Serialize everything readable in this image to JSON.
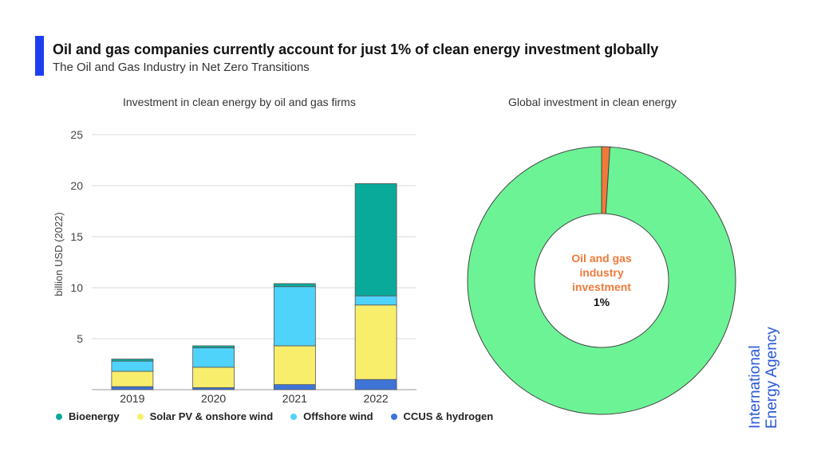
{
  "header": {
    "title": "Oil and gas companies currently account for just 1% of clean energy investment globally",
    "subtitle": "The Oil and Gas Industry in Net Zero Transitions",
    "accent_color": "#1f3df0"
  },
  "brand": {
    "line1": "International",
    "line2": "Energy Agency",
    "color": "#2a59d8"
  },
  "chart_data": [
    {
      "type": "bar",
      "stacked": true,
      "title": "Investment in clean energy by oil and gas firms",
      "ylabel": "billion USD (2022)",
      "xlabel": "",
      "ylim": [
        0,
        25
      ],
      "yticks": [
        5,
        10,
        15,
        20,
        25
      ],
      "grid": true,
      "legend_position": "bottom",
      "categories": [
        "2019",
        "2020",
        "2021",
        "2022"
      ],
      "series": [
        {
          "name": "CCUS & hydrogen",
          "color": "#3e74d6",
          "values": [
            0.3,
            0.2,
            0.5,
            1.0
          ]
        },
        {
          "name": "Solar PV & onshore wind",
          "color": "#f8ee6c",
          "values": [
            1.5,
            2.0,
            3.8,
            7.3
          ]
        },
        {
          "name": "Offshore wind",
          "color": "#4fd3fa",
          "values": [
            1.0,
            1.9,
            5.8,
            0.9
          ]
        },
        {
          "name": "Bioenergy",
          "color": "#0aaa9a",
          "values": [
            0.2,
            0.2,
            0.3,
            11.0
          ]
        }
      ],
      "legend_order": [
        "Bioenergy",
        "Solar PV & onshore wind",
        "Offshore wind",
        "CCUS & hydrogen"
      ]
    },
    {
      "type": "pie",
      "donut": true,
      "title": "Global investment in clean energy",
      "slices": [
        {
          "label": "Oil and gas industry investment",
          "value": 1,
          "color": "#f07a3a"
        },
        {
          "label": "",
          "value": 99,
          "color": "#6cf395"
        }
      ],
      "center_label": {
        "name": "Oil and gas industry investment",
        "value": "1%"
      }
    }
  ]
}
